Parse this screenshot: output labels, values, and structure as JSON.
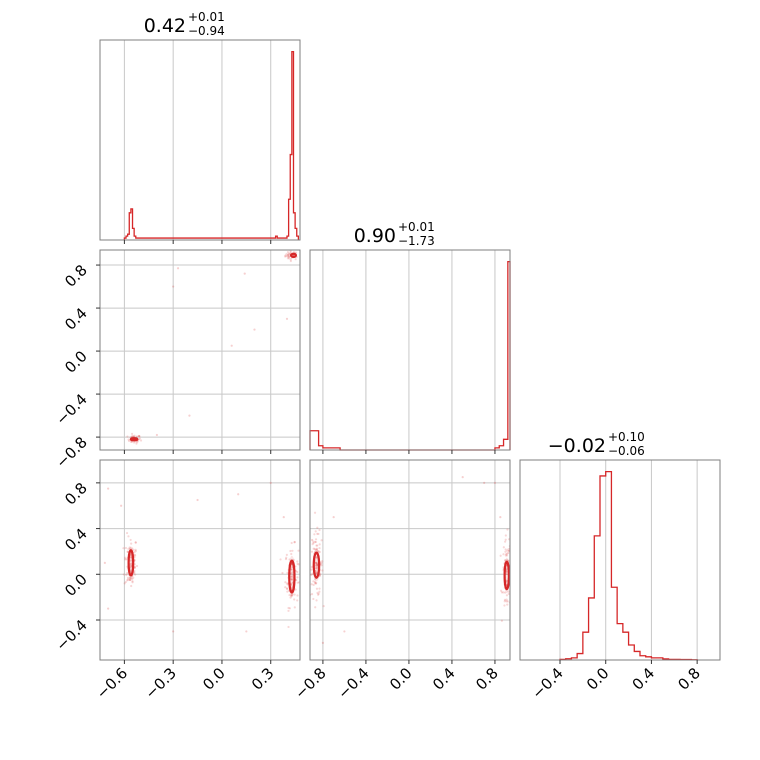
{
  "chart_data": {
    "type": "corner",
    "colors": {
      "series": "#d62728",
      "grid": "#c8c8c8",
      "frame": "#7f7f7f"
    },
    "parameters": [
      {
        "median": "0.42",
        "plus": "+0.01",
        "minus": "−0.94",
        "range": [
          -0.75,
          0.48
        ],
        "ticks": [
          -0.6,
          -0.3,
          0.0,
          0.3
        ],
        "ticklabels": [
          "−0.6",
          "−0.3",
          "0.0",
          "0.3"
        ]
      },
      {
        "median": "0.90",
        "plus": "+0.01",
        "minus": "−1.73",
        "range": [
          -0.92,
          0.94
        ],
        "ticks": [
          -0.8,
          -0.4,
          0.0,
          0.4,
          0.8
        ],
        "ticklabels": [
          "−0.8",
          "−0.4",
          "0.0",
          "0.4",
          "0.8"
        ]
      },
      {
        "median": "−0.02",
        "plus": "+0.10",
        "minus": "−0.06",
        "range": [
          -0.75,
          1.0
        ],
        "ticks": [
          -0.4,
          0.0,
          0.4,
          0.8
        ],
        "ticklabels": [
          "−0.4",
          "0.0",
          "0.4",
          "0.8"
        ]
      }
    ],
    "histograms": [
      {
        "param": 0,
        "bins": [
          [
            -0.6,
            -0.59,
            0.01
          ],
          [
            -0.59,
            -0.58,
            0.02
          ],
          [
            -0.58,
            -0.57,
            0.03
          ],
          [
            -0.57,
            -0.56,
            0.14
          ],
          [
            -0.56,
            -0.55,
            0.16
          ],
          [
            -0.55,
            -0.54,
            0.06
          ],
          [
            -0.54,
            -0.53,
            0.02
          ],
          [
            -0.53,
            -0.52,
            0.01
          ],
          [
            0.31,
            0.32,
            0.01
          ],
          [
            0.32,
            0.33,
            0.01
          ],
          [
            0.33,
            0.34,
            0.02
          ],
          [
            0.34,
            0.35,
            0.01
          ],
          [
            0.35,
            0.36,
            0.01
          ],
          [
            0.36,
            0.37,
            0.01
          ],
          [
            0.37,
            0.38,
            0.01
          ],
          [
            0.38,
            0.39,
            0.01
          ],
          [
            0.39,
            0.4,
            0.01
          ],
          [
            0.4,
            0.41,
            0.02
          ],
          [
            0.41,
            0.42,
            0.21
          ],
          [
            0.42,
            0.43,
            0.44
          ],
          [
            0.43,
            0.44,
            0.97
          ],
          [
            0.44,
            0.45,
            0.14
          ],
          [
            0.45,
            0.46,
            0.06
          ],
          [
            0.46,
            0.47,
            0.02
          ]
        ]
      },
      {
        "param": 1,
        "bins": [
          [
            -0.92,
            -0.88,
            0.09
          ],
          [
            -0.88,
            -0.84,
            0.09
          ],
          [
            -0.84,
            -0.8,
            0.02
          ],
          [
            -0.8,
            -0.76,
            0.01
          ],
          [
            -0.76,
            -0.72,
            0.01
          ],
          [
            -0.72,
            -0.68,
            0.01
          ],
          [
            -0.68,
            -0.64,
            0.01
          ],
          [
            -0.64,
            0.8,
            0.0
          ],
          [
            0.8,
            0.84,
            0.01
          ],
          [
            0.84,
            0.88,
            0.02
          ],
          [
            0.88,
            0.92,
            0.05
          ],
          [
            0.92,
            0.94,
            0.88
          ]
        ]
      },
      {
        "param": 2,
        "bins": [
          [
            -0.4,
            -0.35,
            0.003
          ],
          [
            -0.35,
            -0.3,
            0.006
          ],
          [
            -0.3,
            -0.25,
            0.01
          ],
          [
            -0.25,
            -0.2,
            0.03
          ],
          [
            -0.2,
            -0.15,
            0.13
          ],
          [
            -0.15,
            -0.1,
            0.29
          ],
          [
            -0.1,
            -0.05,
            0.58
          ],
          [
            -0.05,
            0.0,
            0.86
          ],
          [
            0.0,
            0.05,
            0.88
          ],
          [
            0.05,
            0.1,
            0.34
          ],
          [
            0.1,
            0.15,
            0.17
          ],
          [
            0.15,
            0.2,
            0.13
          ],
          [
            0.2,
            0.25,
            0.07
          ],
          [
            0.25,
            0.3,
            0.04
          ],
          [
            0.3,
            0.35,
            0.02
          ],
          [
            0.35,
            0.4,
            0.015
          ],
          [
            0.4,
            0.45,
            0.01
          ],
          [
            0.45,
            0.5,
            0.01
          ],
          [
            0.5,
            0.55,
            0.005
          ],
          [
            0.55,
            0.6,
            0.003
          ],
          [
            0.6,
            0.65,
            0.003
          ],
          [
            0.65,
            0.7,
            0.002
          ],
          [
            0.7,
            0.75,
            0.002
          ],
          [
            0.75,
            0.8,
            0.001
          ]
        ]
      }
    ],
    "scatter_panels": [
      {
        "x": 0,
        "y": 1,
        "clusters": [
          {
            "cx": 0.43,
            "cy": 0.89,
            "sx": 0.02,
            "sy": 0.02,
            "n": 40
          },
          {
            "cx": -0.54,
            "cy": -0.82,
            "sx": 0.02,
            "sy": 0.02,
            "n": 40
          }
        ],
        "outliers": [
          [
            -0.27,
            0.77
          ],
          [
            0.14,
            0.72
          ],
          [
            -0.3,
            0.6
          ],
          [
            0.06,
            0.05
          ],
          [
            -0.2,
            -0.6
          ],
          [
            -0.4,
            -0.78
          ],
          [
            0.4,
            0.3
          ],
          [
            0.2,
            0.2
          ]
        ],
        "contours": [
          {
            "cx": 0.44,
            "cy": 0.89,
            "rx": 0.015,
            "ry": 0.015
          },
          {
            "cx": -0.54,
            "cy": -0.82,
            "rx": 0.02,
            "ry": 0.01
          }
        ]
      },
      {
        "x": 0,
        "y": 2,
        "clusters": [
          {
            "cx": -0.56,
            "cy": 0.1,
            "sx": 0.02,
            "sy": 0.12,
            "n": 90
          },
          {
            "cx": 0.43,
            "cy": -0.02,
            "sx": 0.02,
            "sy": 0.13,
            "n": 110
          }
        ],
        "outliers": [
          [
            -0.7,
            0.75
          ],
          [
            -0.72,
            0.1
          ],
          [
            -0.7,
            -0.3
          ],
          [
            -0.3,
            -0.5
          ],
          [
            -0.15,
            0.65
          ],
          [
            0.15,
            -0.5
          ],
          [
            0.1,
            0.7
          ],
          [
            0.3,
            0.8
          ],
          [
            -0.62,
            0.6
          ],
          [
            0.38,
            0.5
          ]
        ],
        "contours": [
          {
            "cx": -0.56,
            "cy": 0.1,
            "rx": 0.014,
            "ry": 0.11
          },
          {
            "cx": 0.43,
            "cy": -0.02,
            "rx": 0.016,
            "ry": 0.14
          }
        ]
      },
      {
        "x": 1,
        "y": 2,
        "clusters": [
          {
            "cx": -0.86,
            "cy": 0.08,
            "sx": 0.03,
            "sy": 0.14,
            "n": 110
          },
          {
            "cx": 0.91,
            "cy": 0.0,
            "sx": 0.02,
            "sy": 0.16,
            "n": 90
          }
        ],
        "outliers": [
          [
            -0.7,
            0.5
          ],
          [
            -0.6,
            -0.5
          ],
          [
            -0.9,
            0.3
          ],
          [
            0.8,
            0.8
          ],
          [
            0.7,
            0.8
          ],
          [
            0.85,
            0.5
          ],
          [
            -0.8,
            -0.6
          ],
          [
            0.5,
            0.85
          ]
        ],
        "contours": [
          {
            "cx": -0.86,
            "cy": 0.08,
            "rx": 0.025,
            "ry": 0.11
          },
          {
            "cx": 0.91,
            "cy": -0.01,
            "rx": 0.02,
            "ry": 0.12
          }
        ]
      }
    ],
    "ylims": {
      "row1": [
        -0.92,
        0.94
      ],
      "row2": [
        -0.75,
        1.0
      ]
    },
    "grid": true
  }
}
